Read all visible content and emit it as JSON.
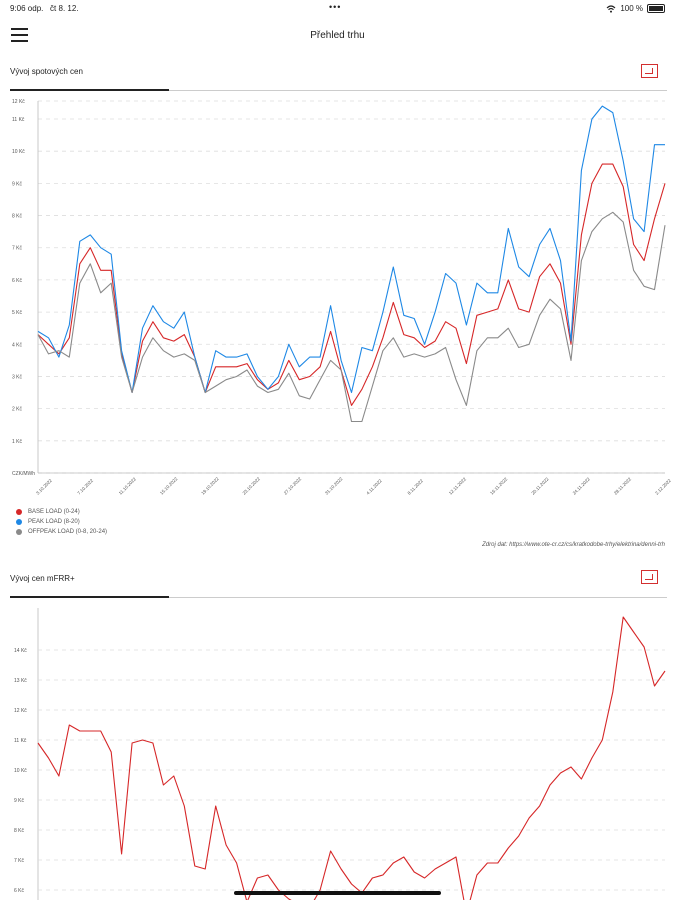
{
  "status": {
    "time": "9:06 odp.",
    "date": "čt 8. 12.",
    "dots": "•••",
    "battery": "100 %"
  },
  "header": {
    "title": "Přehled trhu"
  },
  "chart1": {
    "title": "Vývoj spotových cen"
  },
  "chart2": {
    "title": "Vývoj cen mFRR+"
  },
  "legend": {
    "base": "BASE LOAD (0-24)",
    "peak": "PEAK LOAD (8-20)",
    "offpeak": "OFFPEAK LOAD (0-8, 20-24)"
  },
  "source": "Zdroj dat: https://www.ote-cr.cz/cs/kratkodobe-trhy/elektrina/denni-trh",
  "chart_data": [
    {
      "type": "line",
      "title": "Vývoj spotových cen",
      "ylim": [
        0,
        11
      ],
      "y_tick_labels": [
        "CZK/MWh",
        "1 Kč",
        "2 Kč",
        "3 Kč",
        "4 Kč",
        "5 Kč",
        "6 Kč",
        "7 Kč",
        "8 Kč",
        "9 Kč",
        "10 Kč",
        "11 Kč",
        "12 Kč"
      ],
      "x_tick_labels": [
        "3.10.2022",
        "7.10.2022",
        "11.10.2022",
        "15.10.2022",
        "19.10.2022",
        "23.10.2022",
        "27.10.2022",
        "31.10.2022",
        "4.11.2022",
        "8.11.2022",
        "12.11.2022",
        "16.11.2022",
        "20.11.2022",
        "24.11.2022",
        "28.11.2022",
        "2.12.2022"
      ],
      "grid": true,
      "legend": "bottom-left",
      "colors": {
        "base": "#d62728",
        "peak": "#1e88e5",
        "offpeak": "#8a8a8a"
      },
      "series": [
        {
          "name": "BASE LOAD (0-24)",
          "values": [
            4.3,
            4.0,
            3.7,
            4.2,
            6.5,
            7.0,
            6.3,
            6.3,
            3.7,
            2.5,
            4.1,
            4.7,
            4.2,
            4.1,
            4.3,
            3.6,
            2.5,
            3.3,
            3.3,
            3.3,
            3.4,
            2.9,
            2.6,
            2.8,
            3.5,
            2.9,
            3.0,
            3.3,
            4.4,
            3.2,
            2.1,
            2.6,
            3.3,
            4.2,
            5.3,
            4.3,
            4.2,
            3.9,
            4.1,
            4.7,
            4.5,
            3.4,
            4.9,
            5.0,
            5.1,
            6.0,
            5.1,
            5.0,
            6.1,
            6.5,
            5.9,
            4.0,
            7.4,
            9.0,
            9.6,
            9.6,
            8.9,
            7.1,
            6.6,
            7.9,
            9.0
          ]
        },
        {
          "name": "PEAK LOAD (8-20)",
          "values": [
            4.4,
            4.2,
            3.6,
            4.6,
            7.2,
            7.4,
            7.0,
            6.8,
            3.8,
            2.5,
            4.5,
            5.2,
            4.7,
            4.5,
            5.0,
            3.6,
            2.5,
            3.8,
            3.6,
            3.6,
            3.7,
            3.0,
            2.6,
            3.0,
            4.0,
            3.3,
            3.6,
            3.6,
            5.2,
            3.5,
            2.5,
            3.9,
            3.8,
            5.0,
            6.4,
            4.9,
            4.8,
            4.0,
            5.0,
            6.2,
            5.9,
            4.6,
            5.9,
            5.6,
            5.6,
            7.6,
            6.4,
            6.1,
            7.1,
            7.6,
            6.6,
            4.1,
            9.4,
            11.0,
            11.4,
            11.2,
            9.7,
            7.9,
            7.5,
            10.2,
            10.2
          ]
        },
        {
          "name": "OFFPEAK LOAD (0-8, 20-24)",
          "values": [
            4.3,
            3.7,
            3.8,
            3.6,
            5.9,
            6.5,
            5.6,
            5.9,
            3.6,
            2.5,
            3.6,
            4.2,
            3.8,
            3.6,
            3.7,
            3.5,
            2.5,
            2.7,
            2.9,
            3.0,
            3.2,
            2.7,
            2.5,
            2.6,
            3.1,
            2.4,
            2.3,
            2.9,
            3.5,
            3.2,
            1.6,
            1.6,
            2.7,
            3.8,
            4.2,
            3.6,
            3.7,
            3.6,
            3.7,
            3.9,
            2.9,
            2.1,
            3.8,
            4.2,
            4.2,
            4.5,
            3.9,
            4.0,
            4.9,
            5.4,
            5.1,
            3.5,
            6.6,
            7.5,
            7.9,
            8.1,
            7.8,
            6.3,
            5.8,
            5.7,
            7.7
          ]
        }
      ]
    },
    {
      "type": "line",
      "title": "Vývoj cen mFRR+",
      "y_tick_labels": [
        "6 Kč",
        "7 Kč",
        "8 Kč",
        "9 Kč",
        "10 Kč",
        "11 Kč",
        "12 Kč",
        "13 Kč",
        "14 Kč"
      ],
      "grid": true,
      "colors": {
        "series": "#d62728"
      },
      "series": [
        {
          "values": [
            10.9,
            10.4,
            9.8,
            11.5,
            11.3,
            11.3,
            11.3,
            10.6,
            7.2,
            10.9,
            11.0,
            10.9,
            9.5,
            9.8,
            8.8,
            6.8,
            6.7,
            8.8,
            7.5,
            6.9,
            5.6,
            6.4,
            6.5,
            6.0,
            5.7,
            5.5,
            5.4,
            6.0,
            7.3,
            6.7,
            6.2,
            5.9,
            6.4,
            6.5,
            6.9,
            7.1,
            6.6,
            6.4,
            6.7,
            6.9,
            7.1,
            5.2,
            6.5,
            6.9,
            6.9,
            7.4,
            7.8,
            8.4,
            8.8,
            9.5,
            9.9,
            10.1,
            9.7,
            10.4,
            11.0,
            12.6,
            15.1,
            14.6,
            14.1,
            12.8,
            13.3
          ]
        }
      ]
    }
  ]
}
